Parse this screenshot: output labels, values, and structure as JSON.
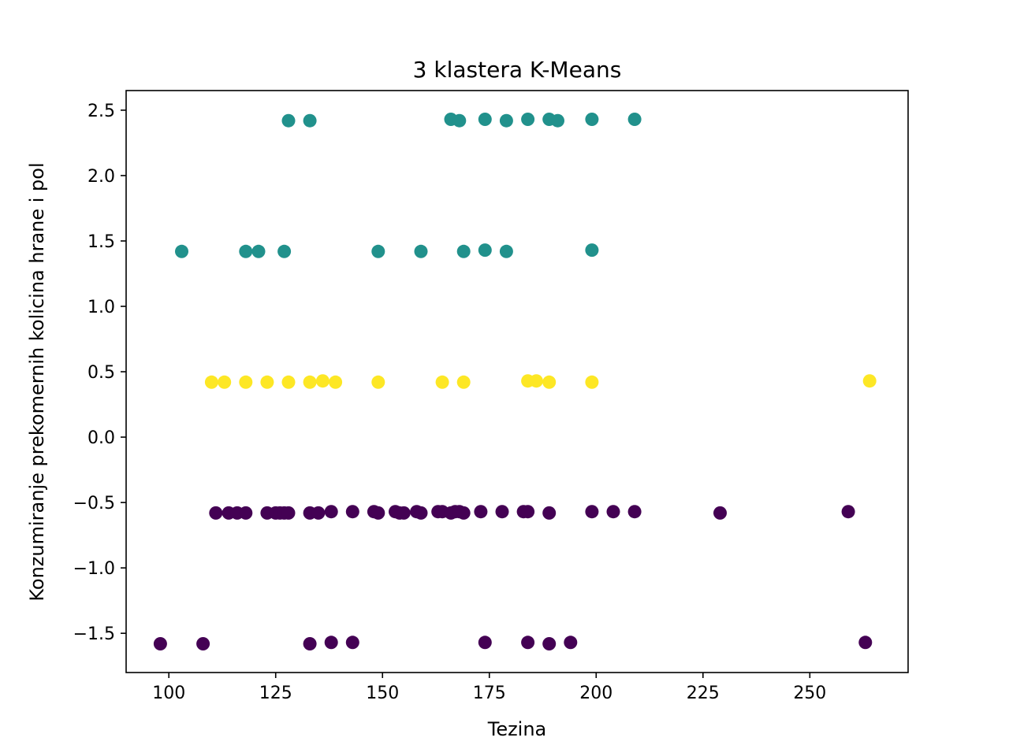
{
  "chart_data": {
    "type": "scatter",
    "title": "3 klastera K-Means",
    "xlabel": "Tezina",
    "ylabel": "Konzumiranje prekomernih kolicina hrane i pol",
    "xlim": [
      90,
      273
    ],
    "ylim": [
      -1.8,
      2.65
    ],
    "xticks": [
      100,
      125,
      150,
      175,
      200,
      225,
      250
    ],
    "yticks": [
      2.5,
      2.0,
      1.5,
      1.0,
      0.5,
      0.0,
      -0.5,
      -1.0,
      -1.5
    ],
    "ytick_labels": [
      "2.5",
      "2.0",
      "1.5",
      "1.0",
      "0.5",
      "0.0",
      "−0.5",
      "−1.0",
      "−1.5"
    ],
    "grid": false,
    "colors": {
      "cluster_0": "#440154",
      "cluster_1": "#21918c",
      "cluster_2": "#fde725"
    },
    "series": [
      {
        "color": "#21918c",
        "points": [
          [
            128,
            2.42
          ],
          [
            133,
            2.42
          ],
          [
            166,
            2.43
          ],
          [
            168,
            2.42
          ],
          [
            174,
            2.43
          ],
          [
            179,
            2.42
          ],
          [
            184,
            2.43
          ],
          [
            189,
            2.43
          ],
          [
            191,
            2.42
          ],
          [
            199,
            2.43
          ],
          [
            209,
            2.43
          ],
          [
            103,
            1.42
          ],
          [
            118,
            1.42
          ],
          [
            121,
            1.42
          ],
          [
            127,
            1.42
          ],
          [
            149,
            1.42
          ],
          [
            159,
            1.42
          ],
          [
            169,
            1.42
          ],
          [
            174,
            1.43
          ],
          [
            179,
            1.42
          ],
          [
            199,
            1.43
          ]
        ]
      },
      {
        "color": "#fde725",
        "points": [
          [
            110,
            0.42
          ],
          [
            113,
            0.42
          ],
          [
            118,
            0.42
          ],
          [
            123,
            0.42
          ],
          [
            128,
            0.42
          ],
          [
            133,
            0.42
          ],
          [
            136,
            0.43
          ],
          [
            139,
            0.42
          ],
          [
            149,
            0.42
          ],
          [
            164,
            0.42
          ],
          [
            169,
            0.42
          ],
          [
            184,
            0.43
          ],
          [
            186,
            0.43
          ],
          [
            189,
            0.42
          ],
          [
            199,
            0.42
          ],
          [
            264,
            0.43
          ]
        ]
      },
      {
        "color": "#440154",
        "points": [
          [
            111,
            -0.58
          ],
          [
            114,
            -0.58
          ],
          [
            116,
            -0.58
          ],
          [
            118,
            -0.58
          ],
          [
            123,
            -0.58
          ],
          [
            125,
            -0.58
          ],
          [
            126,
            -0.58
          ],
          [
            127,
            -0.58
          ],
          [
            128,
            -0.58
          ],
          [
            133,
            -0.58
          ],
          [
            135,
            -0.58
          ],
          [
            138,
            -0.57
          ],
          [
            143,
            -0.57
          ],
          [
            148,
            -0.57
          ],
          [
            149,
            -0.58
          ],
          [
            153,
            -0.57
          ],
          [
            154,
            -0.58
          ],
          [
            155,
            -0.58
          ],
          [
            158,
            -0.57
          ],
          [
            159,
            -0.58
          ],
          [
            163,
            -0.57
          ],
          [
            164,
            -0.57
          ],
          [
            166,
            -0.58
          ],
          [
            167,
            -0.57
          ],
          [
            168,
            -0.57
          ],
          [
            169,
            -0.58
          ],
          [
            173,
            -0.57
          ],
          [
            178,
            -0.57
          ],
          [
            183,
            -0.57
          ],
          [
            184,
            -0.57
          ],
          [
            189,
            -0.58
          ],
          [
            199,
            -0.57
          ],
          [
            204,
            -0.57
          ],
          [
            209,
            -0.57
          ],
          [
            229,
            -0.58
          ],
          [
            259,
            -0.57
          ],
          [
            98,
            -1.58
          ],
          [
            108,
            -1.58
          ],
          [
            133,
            -1.58
          ],
          [
            138,
            -1.57
          ],
          [
            143,
            -1.57
          ],
          [
            174,
            -1.57
          ],
          [
            184,
            -1.57
          ],
          [
            189,
            -1.58
          ],
          [
            194,
            -1.57
          ],
          [
            263,
            -1.57
          ]
        ]
      }
    ]
  }
}
